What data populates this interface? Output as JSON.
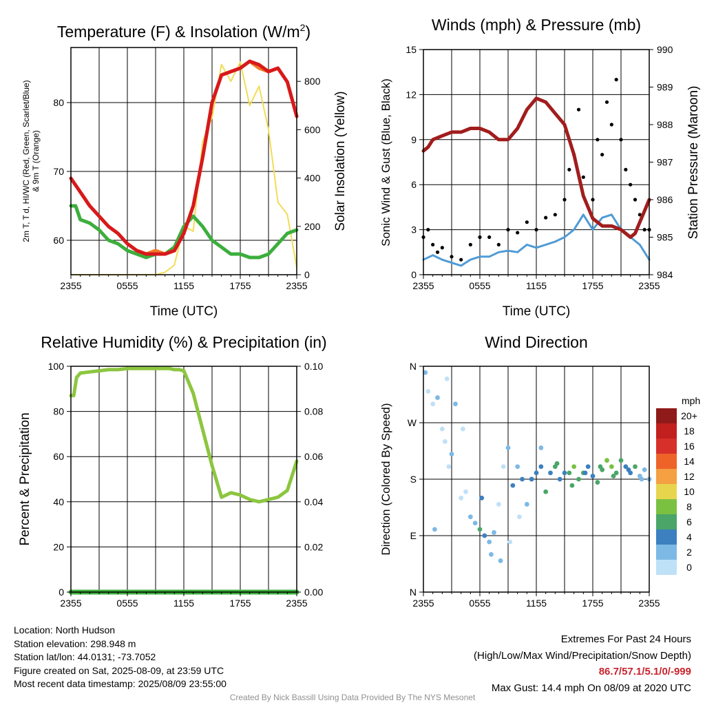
{
  "colors": {
    "temp": "#d7191c",
    "dew": "#3cae3c",
    "windchill": "#f17a25",
    "solar": "#f2dc55",
    "wind": "#4f9bd6",
    "gust": "#000000",
    "pressure": "#a11d1d",
    "rh": "#8cc63f",
    "precip": "#3cae3c"
  },
  "time_ticks": [
    "2355",
    "0555",
    "1155",
    "1755",
    "2355"
  ],
  "chart_data": [
    {
      "id": "temp",
      "type": "line",
      "title_main": "Temperature (F) & Insolation (W/m",
      "title_sup": "2",
      "title_end": ")",
      "xlabel": "Time (UTC)",
      "ylabel_lines": [
        "2m T, T d, HI/WC (Red, Green, Scarlet/Blue)",
        "& 9m T (Orange)"
      ],
      "ylabel2": "Solar Insolation (Yellow)",
      "x_range": [
        0,
        24
      ],
      "ylim": [
        55,
        88
      ],
      "yticks": [
        60,
        70,
        80
      ],
      "ylim2": [
        0,
        940
      ],
      "yticks2": [
        0,
        200,
        400,
        600,
        800
      ],
      "series": [
        {
          "key": "solar",
          "axis": "right",
          "x": [
            0,
            3,
            6,
            9,
            10,
            11,
            12,
            13,
            14,
            15,
            16,
            17,
            18,
            19,
            20,
            21,
            22,
            23,
            24
          ],
          "y": [
            0,
            0,
            0,
            0,
            10,
            40,
            200,
            180,
            550,
            650,
            870,
            800,
            880,
            700,
            780,
            600,
            300,
            250,
            30
          ]
        },
        {
          "key": "dew",
          "axis": "left",
          "x": [
            0,
            0.5,
            1,
            2,
            3,
            4,
            5,
            6,
            7,
            8,
            9,
            10,
            11,
            12,
            13,
            14,
            15,
            16,
            17,
            18,
            19,
            20,
            21,
            22,
            23,
            24
          ],
          "y": [
            65,
            65,
            63,
            62.5,
            61.5,
            60,
            59.5,
            58.5,
            58,
            57.5,
            58,
            58,
            59,
            62,
            63.5,
            62,
            60,
            59,
            58,
            58,
            57.5,
            57.5,
            58,
            59.5,
            61,
            61.5
          ]
        },
        {
          "key": "windchill",
          "axis": "left",
          "x": [
            0,
            1,
            2,
            3,
            4,
            5,
            6,
            7,
            8,
            9,
            10,
            11,
            12,
            13,
            14,
            15,
            16,
            17,
            18,
            19,
            20,
            21,
            22,
            23,
            24
          ],
          "y": [
            69,
            67,
            65,
            63.5,
            62,
            61,
            59.5,
            58.5,
            58,
            58.5,
            58,
            58.5,
            61,
            65,
            72,
            80,
            84,
            84.5,
            85,
            86,
            85,
            84.5,
            85,
            83,
            78
          ]
        },
        {
          "key": "temp",
          "axis": "left",
          "x": [
            0,
            1,
            2,
            3,
            4,
            5,
            6,
            7,
            8,
            9,
            10,
            11,
            12,
            13,
            14,
            15,
            16,
            17,
            18,
            19,
            20,
            21,
            22,
            23,
            24
          ],
          "y": [
            69,
            67,
            65,
            63.5,
            62,
            61,
            59.5,
            58.5,
            58,
            58,
            58,
            58.5,
            61,
            65,
            72,
            80,
            84,
            84.5,
            85,
            86,
            85.5,
            84.5,
            85,
            83,
            78
          ]
        }
      ]
    },
    {
      "id": "wind",
      "type": "line",
      "title": "Winds (mph) & Pressure (mb)",
      "xlabel": "Time (UTC)",
      "ylabel": "Sonic Wind & Gust (Blue, Black)",
      "ylabel2": "Station Pressure (Maroon)",
      "x_range": [
        0,
        24
      ],
      "ylim": [
        0,
        15
      ],
      "yticks": [
        0,
        3,
        6,
        9,
        12,
        15
      ],
      "ylim2": [
        984,
        990
      ],
      "yticks2": [
        984,
        985,
        986,
        987,
        988,
        989,
        990
      ],
      "series": [
        {
          "key": "wind",
          "axis": "left",
          "x": [
            0,
            1,
            2,
            3,
            4,
            5,
            6,
            7,
            8,
            9,
            10,
            11,
            12,
            13,
            14,
            15,
            16,
            17,
            18,
            19,
            20,
            21,
            22,
            23,
            24
          ],
          "y": [
            1,
            1.3,
            1,
            0.8,
            0.6,
            1,
            1.2,
            1.2,
            1.5,
            1.6,
            1.5,
            2,
            1.8,
            2,
            2.2,
            2.5,
            3,
            4,
            3,
            3.8,
            4,
            3,
            2.5,
            2,
            1
          ]
        },
        {
          "key": "gust",
          "axis": "left",
          "type": "scatter",
          "x": [
            0,
            0.5,
            1,
            1.5,
            2,
            3,
            4,
            5,
            6,
            7,
            8,
            9,
            10,
            11,
            12,
            13,
            14,
            15,
            15.5,
            16,
            16.5,
            17,
            18,
            18.5,
            19,
            19.5,
            20,
            20.5,
            21,
            21.5,
            22,
            22.5,
            23,
            23.5,
            24
          ],
          "y": [
            2.5,
            3,
            2,
            1.5,
            1.8,
            1.2,
            1,
            2,
            2.5,
            2.5,
            2,
            3,
            2.8,
            3.5,
            3,
            3.8,
            4,
            5,
            7,
            8,
            11,
            6.5,
            5,
            9,
            8,
            11.5,
            10,
            13,
            9,
            7,
            6,
            5,
            4,
            3,
            3
          ]
        },
        {
          "key": "pressure",
          "axis": "right",
          "x": [
            0,
            0.5,
            1,
            2,
            3,
            4,
            5,
            6,
            7,
            8,
            9,
            10,
            11,
            12,
            13,
            14,
            15,
            16,
            17,
            18,
            19,
            20,
            21,
            22,
            22.5,
            23,
            23.5,
            24
          ],
          "y": [
            987.3,
            987.4,
            987.6,
            987.7,
            987.8,
            987.8,
            987.9,
            987.9,
            987.8,
            987.6,
            987.6,
            987.9,
            988.4,
            988.7,
            988.6,
            988.3,
            988.0,
            987.2,
            986.1,
            985.5,
            985.3,
            985.3,
            985.2,
            985.0,
            985.1,
            985.4,
            985.7,
            986.0
          ]
        }
      ]
    },
    {
      "id": "rh",
      "type": "line",
      "title": "Relative Humidity (%) & Precipitation (in)",
      "ylabel": "Percent & Precipitation",
      "x_range": [
        0,
        24
      ],
      "ylim": [
        0,
        100
      ],
      "yticks": [
        0,
        20,
        40,
        60,
        80,
        100
      ],
      "ylim2": [
        0,
        0.1
      ],
      "yticks2": [
        "0.00",
        "0.02",
        "0.04",
        "0.06",
        "0.08",
        "0.10"
      ],
      "series": [
        {
          "key": "rh",
          "axis": "left",
          "x": [
            0,
            0.3,
            0.6,
            1,
            2,
            3,
            4,
            5,
            6,
            7,
            8,
            9,
            10,
            10.5,
            11,
            11.5,
            12,
            13,
            14,
            15,
            16,
            17,
            18,
            19,
            20,
            21,
            22,
            23,
            24
          ],
          "y": [
            87,
            87,
            95,
            97,
            97.5,
            98,
            98.5,
            98.5,
            99,
            99,
            99,
            99,
            99,
            99,
            98.5,
            98.5,
            98,
            88,
            72,
            56,
            42,
            44,
            43,
            41,
            40,
            41,
            42,
            45,
            58
          ]
        },
        {
          "key": "precip",
          "axis": "right",
          "x": [
            0,
            24
          ],
          "y": [
            0,
            0
          ]
        }
      ]
    },
    {
      "id": "dir",
      "type": "scatter",
      "title": "Wind Direction",
      "ylabel": "Direction (Colored By Speed)",
      "x_range": [
        0,
        24
      ],
      "yticks": [
        "N",
        "E",
        "S",
        "W",
        "N"
      ],
      "legend_unit": "mph",
      "legend_labels": [
        "0",
        "2",
        "4",
        "6",
        "8",
        "10",
        "12",
        "14",
        "16",
        "18",
        "20+"
      ],
      "legend_colors": [
        "#bfe1f7",
        "#7db9e5",
        "#3c80c0",
        "#4aa668",
        "#7ac142",
        "#e8d54e",
        "#f4a043",
        "#ee6328",
        "#d7302b",
        "#c1201f",
        "#8e1a1a"
      ],
      "x": [
        0.2,
        0.5,
        1,
        1.5,
        2,
        2.3,
        2.7,
        3,
        3.4,
        4,
        4.5,
        5,
        5.5,
        6,
        6.5,
        7,
        7.5,
        8,
        8.5,
        9,
        9.5,
        10,
        10.5,
        11,
        11.5,
        12,
        12.5,
        13,
        13.5,
        14,
        14.5,
        15,
        15.5,
        16,
        16.5,
        17,
        17.5,
        18,
        18.5,
        19,
        19.5,
        20,
        20.5,
        21,
        21.5,
        22,
        22.5,
        23,
        23.5,
        24,
        1.2,
        2.5,
        4.2,
        6.2,
        7.2,
        8.2,
        9.2,
        10.2,
        11.5,
        12.5,
        14.2,
        15.8,
        17.2,
        18.8,
        20.2,
        21.8,
        23.2
      ],
      "y": [
        350,
        320,
        300,
        310,
        260,
        240,
        200,
        220,
        300,
        150,
        160,
        120,
        110,
        100,
        90,
        80,
        95,
        140,
        200,
        230,
        170,
        200,
        180,
        140,
        180,
        190,
        200,
        160,
        190,
        200,
        180,
        190,
        190,
        200,
        180,
        190,
        200,
        185,
        175,
        195,
        210,
        200,
        190,
        210,
        200,
        190,
        200,
        185,
        195,
        180,
        100,
        340,
        260,
        150,
        60,
        50,
        80,
        120,
        180,
        230,
        205,
        170,
        190,
        200,
        185,
        195,
        180
      ],
      "speed": [
        1,
        0,
        0,
        1,
        0,
        0,
        0,
        1,
        1,
        0,
        0,
        1,
        1,
        3,
        2,
        1,
        1,
        0,
        0,
        1,
        2,
        1,
        2,
        1,
        2,
        2,
        2,
        3,
        2,
        3,
        2,
        2,
        3,
        4,
        3,
        3,
        2,
        2,
        3,
        3,
        4,
        4,
        3,
        3,
        2,
        2,
        3,
        1,
        1,
        1,
        1,
        0,
        0,
        2,
        1,
        1,
        0,
        0,
        2,
        1,
        3,
        3,
        2,
        3,
        3,
        2,
        1
      ]
    }
  ],
  "info": {
    "lines": [
      "Location: North Hudson",
      "Station elevation: 298.948 m",
      "Station lat/lon: 44.0131; -73.7052",
      "Figure created on Sat, 2025-08-09, at 23:59 UTC",
      "Most recent data timestamp: 2025/08/09 23:55:00"
    ]
  },
  "extremes": {
    "title": "Extremes For Past 24 Hours",
    "subtitle": "(High/Low/Max Wind/Precipitation/Snow Depth)",
    "values": "86.7/57.1/5.1/0/-999",
    "gust": "Max Gust: 14.4 mph On 08/09 at 2020 UTC"
  },
  "credit": "Created By Nick Bassill Using Data Provided By The NYS Mesonet"
}
